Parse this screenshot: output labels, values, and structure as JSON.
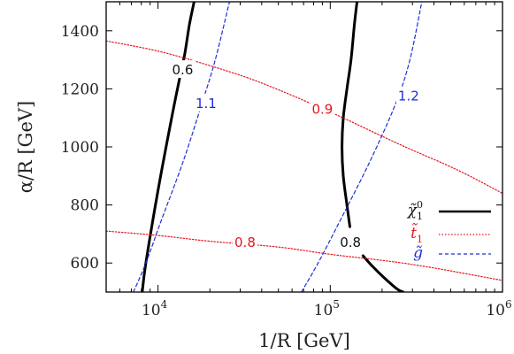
{
  "chart_data": {
    "type": "line",
    "xlabel": "1/R [GeV]",
    "ylabel": "α/R [GeV]",
    "xscale": "log",
    "xlim": [
      5000,
      1000000
    ],
    "ylim": [
      500,
      1500
    ],
    "x_ticks": [
      {
        "value": 10000,
        "base": "10",
        "exp": "4"
      },
      {
        "value": 100000,
        "base": "10",
        "exp": "5"
      },
      {
        "value": 1000000,
        "base": "10",
        "exp": "6"
      }
    ],
    "y_ticks": [
      600,
      800,
      1000,
      1200,
      1400
    ],
    "grid": false,
    "legend_position": "bottom-right",
    "legend": [
      {
        "key": "neutralino",
        "base": "χ̃",
        "sup": "0",
        "sub": "1",
        "color": "#000000",
        "style": "solid"
      },
      {
        "key": "stop",
        "base": "t̃",
        "sub": "1",
        "color": "#e8141c",
        "style": "dotted"
      },
      {
        "key": "gluino",
        "base": "g̃",
        "color": "#1f2fd6",
        "style": "dashed"
      }
    ],
    "series": [
      {
        "key": "neutralino",
        "label": "0.6",
        "label_at": [
          13900,
          1265
        ],
        "points": [
          [
            8100,
            500
          ],
          [
            8500,
            600
          ],
          [
            10000,
            850
          ],
          [
            12000,
            1100
          ],
          [
            13500,
            1250
          ],
          [
            14300,
            1320
          ],
          [
            15200,
            1420
          ],
          [
            16200,
            1500
          ]
        ]
      },
      {
        "key": "neutralino",
        "label": "0.8",
        "label_at": [
          131000,
          670
        ],
        "points": [
          [
            130000,
            725
          ],
          [
            125000,
            800
          ],
          [
            119000,
            900
          ],
          [
            117000,
            1000
          ],
          [
            119000,
            1100
          ],
          [
            125000,
            1200
          ],
          [
            132000,
            1300
          ],
          [
            138000,
            1420
          ],
          [
            143000,
            1500
          ]
        ]
      },
      {
        "key": "neutralino",
        "label": "",
        "label_at": null,
        "points": [
          [
            155000,
            625
          ],
          [
            175000,
            590
          ],
          [
            205000,
            550
          ],
          [
            245000,
            510
          ],
          [
            265000,
            500
          ]
        ]
      },
      {
        "key": "stop",
        "label": "0.9",
        "label_at": [
          90000,
          1130
        ],
        "points": [
          [
            5000,
            1365
          ],
          [
            10000,
            1330
          ],
          [
            20000,
            1280
          ],
          [
            40000,
            1220
          ],
          [
            100000,
            1120
          ],
          [
            250000,
            1010
          ],
          [
            550000,
            920
          ],
          [
            1000000,
            840
          ]
        ]
      },
      {
        "key": "stop",
        "label": "0.8",
        "label_at": [
          32000,
          670
        ],
        "points": [
          [
            5000,
            710
          ],
          [
            10000,
            695
          ],
          [
            20000,
            675
          ],
          [
            50000,
            655
          ],
          [
            100000,
            630
          ],
          [
            300000,
            595
          ],
          [
            1000000,
            540
          ]
        ]
      },
      {
        "key": "gluino",
        "label": "1.1",
        "label_at": [
          19000,
          1150
        ],
        "points": [
          [
            7200,
            500
          ],
          [
            8500,
            600
          ],
          [
            10500,
            750
          ],
          [
            14000,
            950
          ],
          [
            18000,
            1150
          ],
          [
            21500,
            1300
          ],
          [
            26000,
            1500
          ]
        ]
      },
      {
        "key": "gluino",
        "label": "1.2",
        "label_at": [
          285000,
          1175
        ],
        "points": [
          [
            68000,
            500
          ],
          [
            85000,
            600
          ],
          [
            115000,
            750
          ],
          [
            170000,
            950
          ],
          [
            240000,
            1150
          ],
          [
            290000,
            1300
          ],
          [
            340000,
            1500
          ]
        ]
      }
    ]
  }
}
